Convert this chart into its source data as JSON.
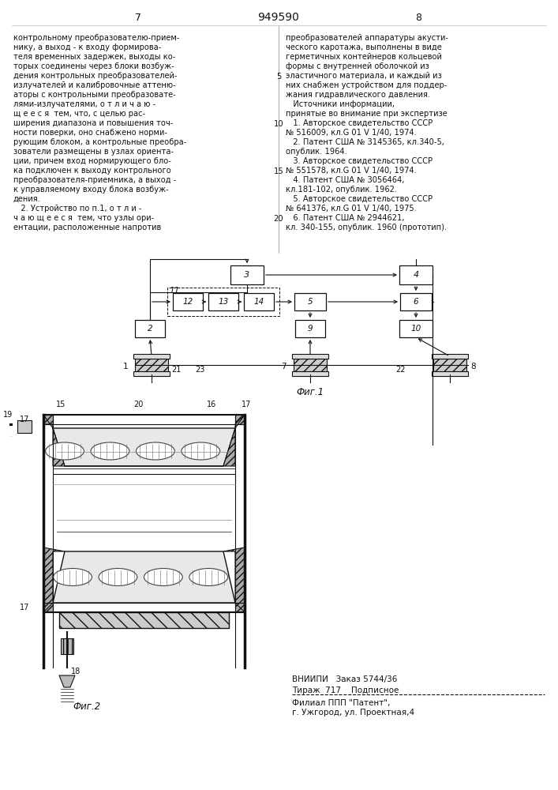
{
  "page_width": 7.07,
  "page_height": 10.0,
  "bg_color": "#ffffff",
  "header_page_left": "7",
  "header_title": "949590",
  "header_page_right": "8",
  "left_col_text": [
    "контрольному преобразователю-прием-",
    "нику, а выход - к входу формирова-",
    "теля временных задержек, выходы ко-",
    "торых соединены через блоки возбуж-",
    "дения контрольных преобразователей-",
    "излучателей и калибровочные аттеню-",
    "аторы с контрольными преобразовате-",
    "лями-излучателями, о т л и ч а ю -",
    "щ е е с я  тем, что, с целью рас-",
    "ширения диапазона и повышения точ-",
    "ности поверки, оно снабжено норми-",
    "рующим блоком, а контрольные преобра-",
    "зователи размещены в узлах ориента-",
    "ции, причем вход нормирующего бло-",
    "ка подключен к выходу контрольного",
    "преобразователя-приемника, а выход -",
    "к управляемому входу блока возбуж-",
    "дения.",
    "   2. Устройство по п.1, о т л и -",
    "ч а ю щ е е с я  тем, что узлы ори-",
    "ентации, расположенные напротив"
  ],
  "right_col_text": [
    "преобразователей аппаратуры акусти-",
    "ческого каротажа, выполнены в виде",
    "герметичных контейнеров кольцевой",
    "формы с внутренней оболочкой из",
    "эластичного материала, и каждый из",
    "них снабжен устройством для поддер-",
    "жания гидравлического давления.",
    "   Источники информации,",
    "принятые во внимание при экспертизе",
    "   1. Авторское свидетельство СССР",
    "№ 516009, кл.G 01 V 1/40, 1974.",
    "   2. Патент США № 3145365, кл.340-5,",
    "опублик. 1964.",
    "   3. Авторское свидетельство СССР",
    "№ 551578, кл.G 01 V 1/40, 1974.",
    "   4. Патент США № 3056464,",
    "кл.181-102, опублик. 1962.",
    "   5. Авторское свидетельство СССР",
    "№ 641376, кл.G 01 V 1/40, 1975.",
    "   6. Патент США № 2944621,",
    "кл. 340-155, опублик. 1960 (прототип)."
  ],
  "line_nums": [
    [
      5,
      4
    ],
    [
      10,
      6
    ],
    [
      15,
      8
    ],
    [
      20,
      10
    ]
  ],
  "footer_vnipi": "ВНИИПИ   Заказ 5744/36",
  "footer_tirazh": "Тираж  717    Подписное",
  "footer_filial": "Филиал ППП \"Патент\",",
  "footer_uzhgorod": "г. Ужгород, ул. Проектная,4",
  "fig1_label": "Фиг.1",
  "fig2_label": "Фиг.2"
}
